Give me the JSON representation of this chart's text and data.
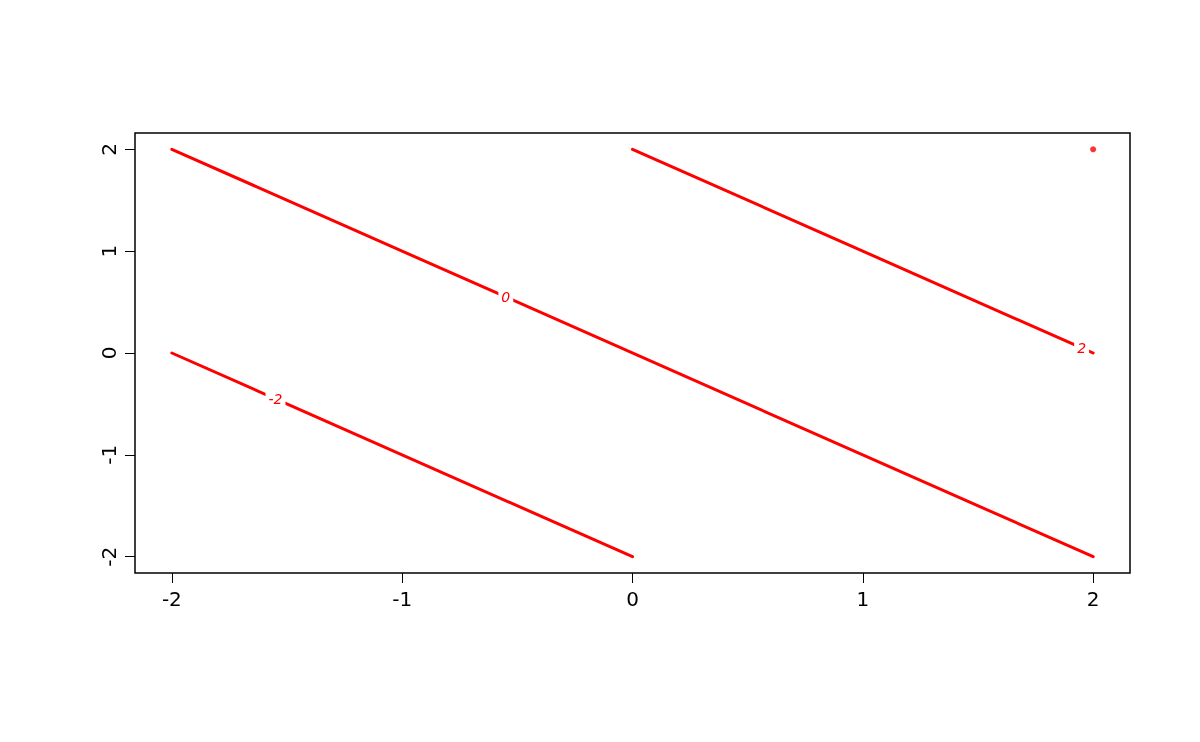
{
  "chart_data": {
    "type": "line",
    "xlim": [
      -2.16,
      2.16
    ],
    "ylim": [
      -2.16,
      2.16
    ],
    "xticks": [
      -2,
      -1,
      0,
      1,
      2
    ],
    "yticks": [
      -2,
      -1,
      0,
      1,
      2
    ],
    "grid": false,
    "legend": false,
    "marker": "none",
    "line_style": "solid",
    "series": [
      {
        "name": "-2",
        "color": "#ff0000",
        "x": [
          -2,
          -1.55,
          0
        ],
        "values": [
          0,
          -0.45,
          -2
        ]
      },
      {
        "name": "0",
        "color": "#ff0000",
        "x": [
          -2,
          -0.55,
          2
        ],
        "values": [
          2,
          0.55,
          -2
        ]
      },
      {
        "name": "2",
        "color": "#ff0000",
        "x": [
          0,
          1.95,
          2
        ],
        "values": [
          2,
          0.05,
          0
        ]
      },
      {
        "type": "scatter",
        "color": "#ff0000",
        "x": [
          2
        ],
        "values": [
          2
        ]
      }
    ]
  }
}
